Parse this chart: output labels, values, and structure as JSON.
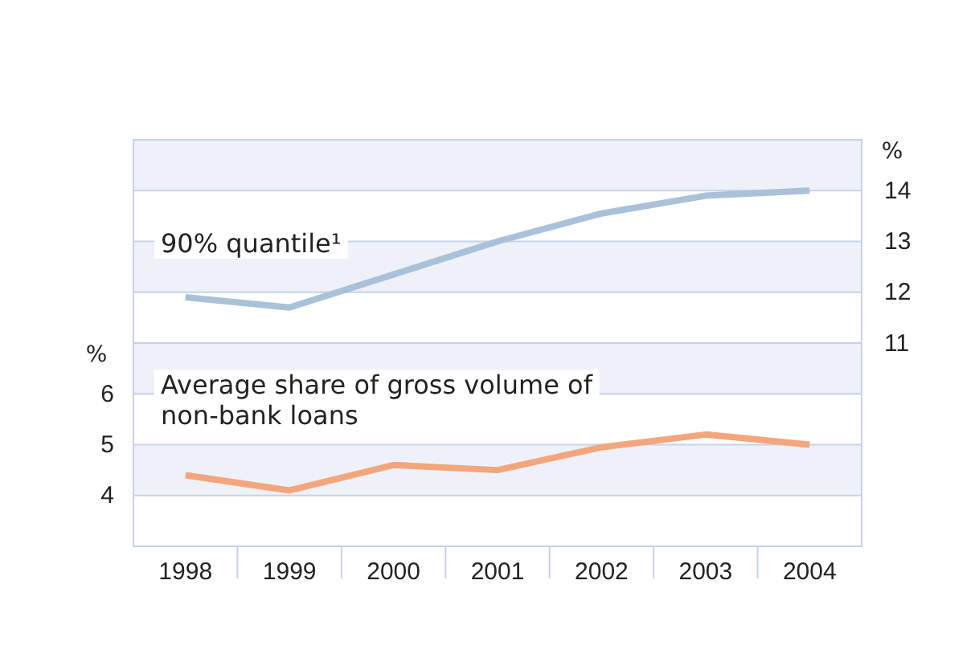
{
  "chart_data": {
    "type": "line",
    "categories": [
      "1998",
      "1999",
      "2000",
      "2001",
      "2002",
      "2003",
      "2004"
    ],
    "series": [
      {
        "name": "90% quantile¹",
        "color": "#a9c1d9",
        "axis": "y2",
        "values": [
          11.9,
          11.7,
          12.35,
          13.0,
          13.55,
          13.9,
          14.0
        ]
      },
      {
        "name": "Average share of gross volume of non-bank loans",
        "color": "#f3a67c",
        "values": [
          4.4,
          4.1,
          4.6,
          4.5,
          4.95,
          5.2,
          5.0
        ]
      }
    ],
    "ylabel": "%",
    "y2label": "%",
    "ylim": [
      3,
      11
    ],
    "yticks": [
      4,
      5,
      6
    ],
    "y2lim": [
      7,
      15
    ],
    "y2ticks": [
      11,
      12,
      13,
      14
    ],
    "grid": "y",
    "line_style": "solid",
    "marker": "none"
  }
}
